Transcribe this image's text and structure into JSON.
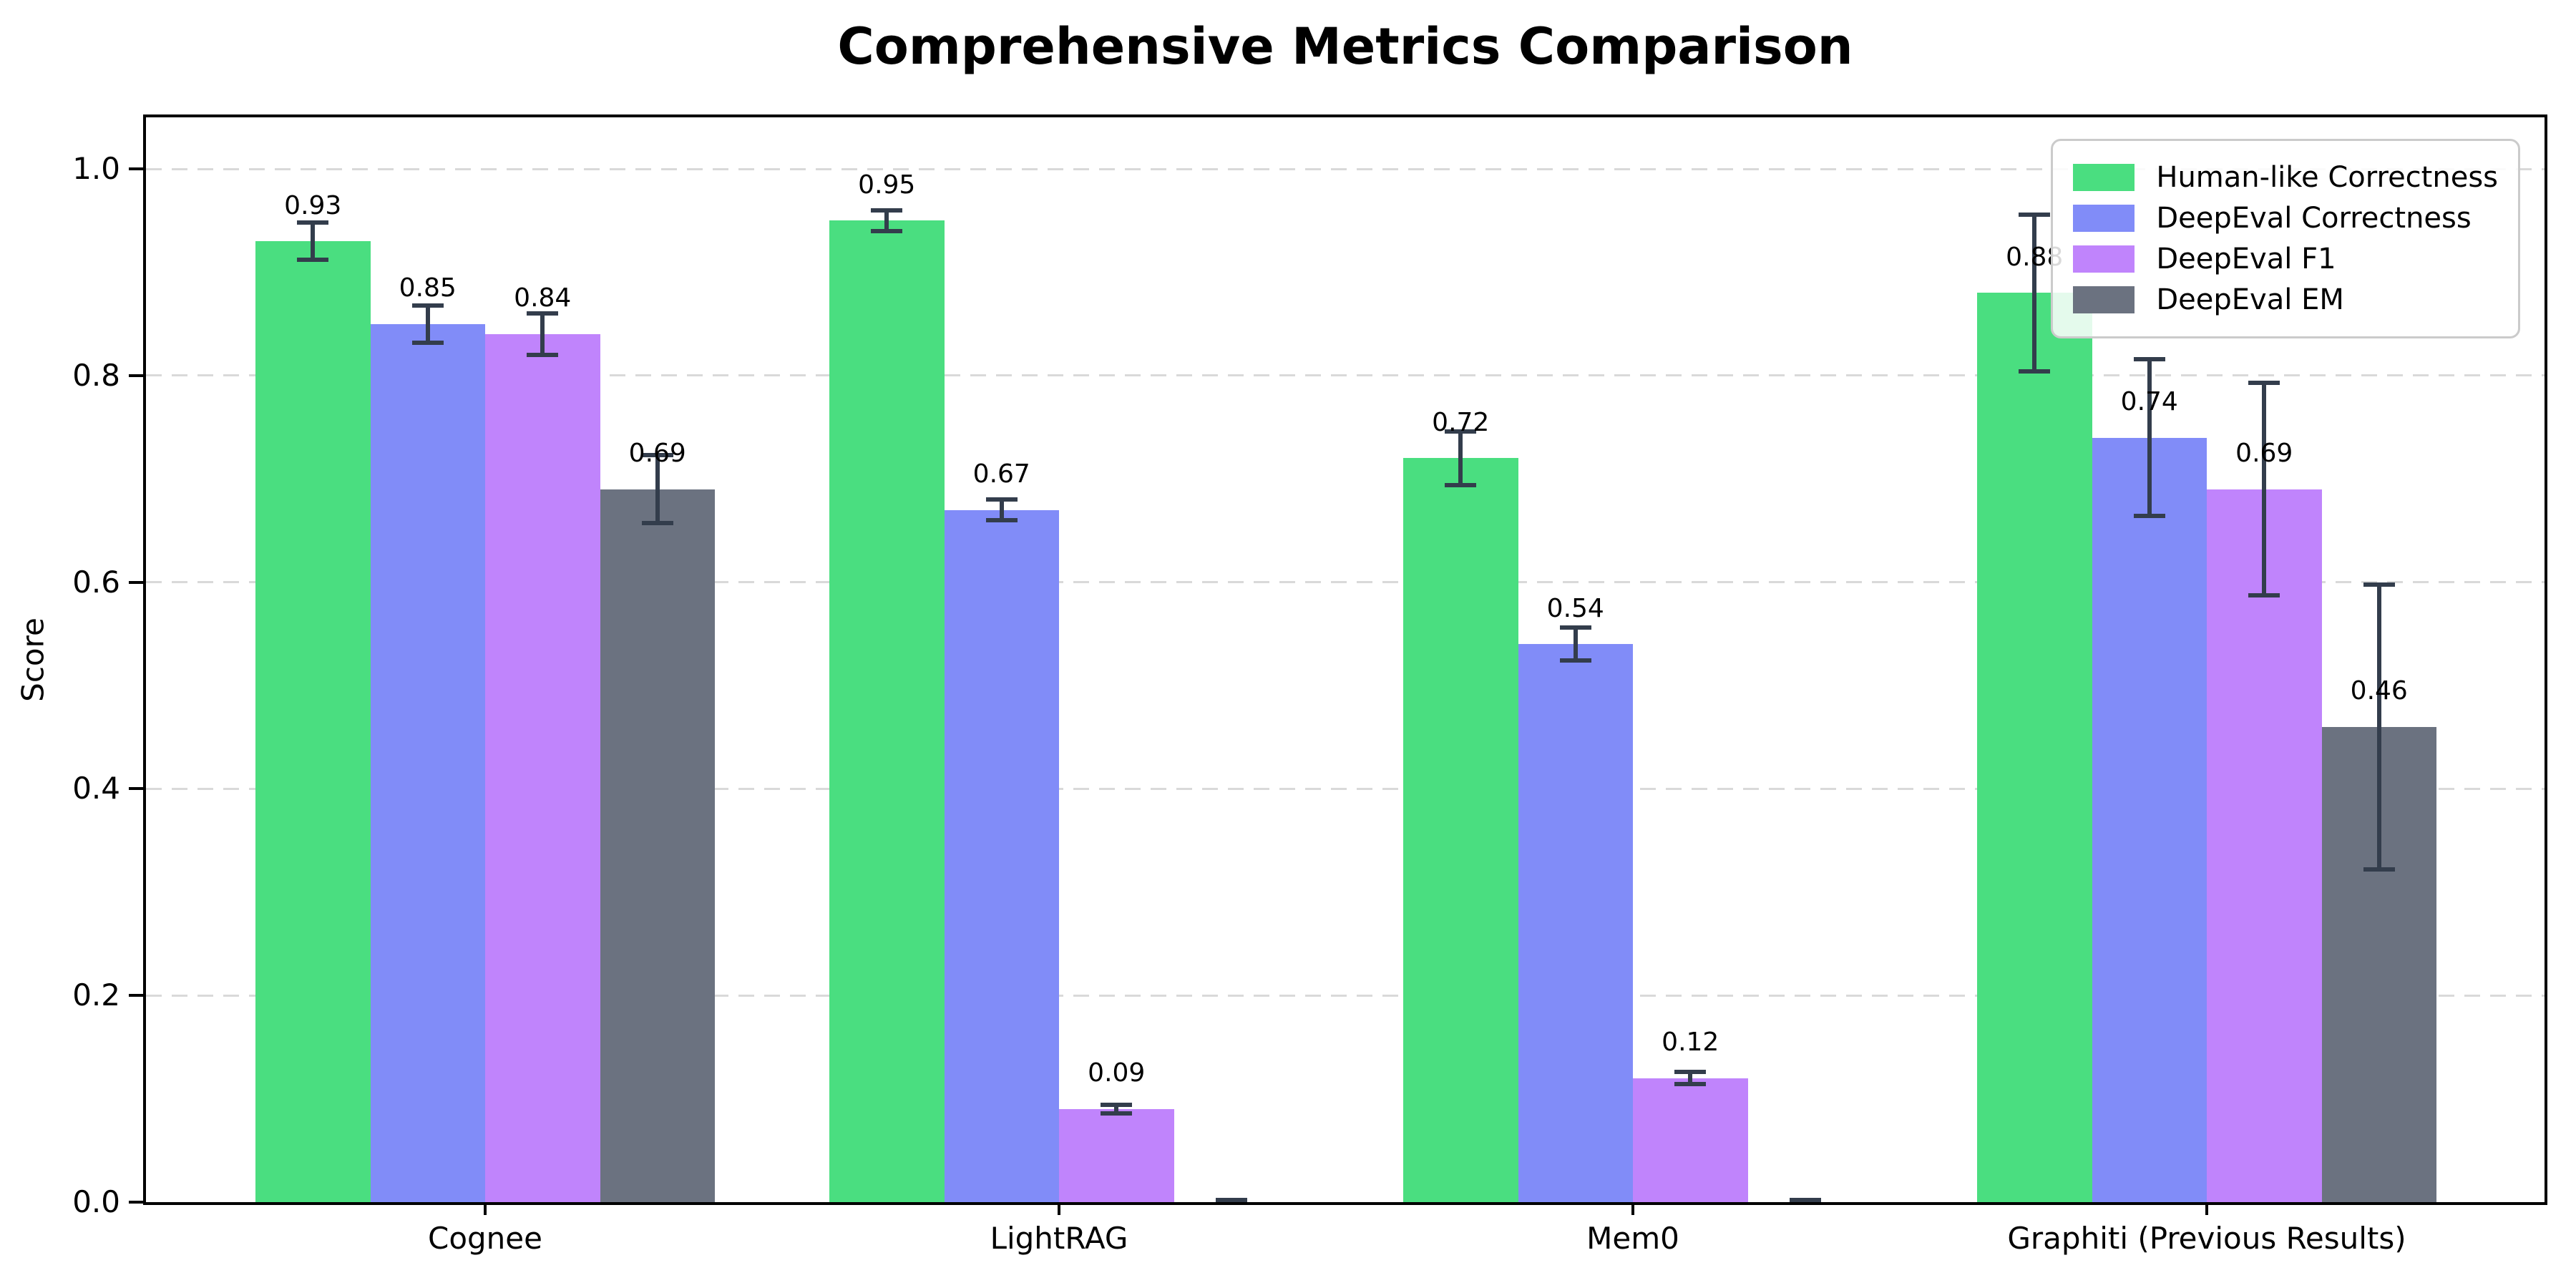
{
  "chart_data": {
    "type": "bar",
    "title": "Comprehensive Metrics Comparison",
    "ylabel": "Score",
    "xlabel": "",
    "categories": [
      "Cognee",
      "LightRAG",
      "Mem0",
      "Graphiti (Previous Results)"
    ],
    "series": [
      {
        "name": "Human-like Correctness",
        "color": "#4ade80",
        "values": [
          0.93,
          0.95,
          0.72,
          0.88
        ],
        "errors": [
          0.02,
          0.012,
          0.028,
          0.078
        ],
        "labels": [
          "0.93",
          "0.95",
          "0.72",
          "0.88"
        ]
      },
      {
        "name": "DeepEval Correctness",
        "color": "#818cf8",
        "values": [
          0.85,
          0.67,
          0.54,
          0.74
        ],
        "errors": [
          0.02,
          0.012,
          0.018,
          0.078
        ],
        "labels": [
          "0.85",
          "0.67",
          "0.54",
          "0.74"
        ]
      },
      {
        "name": "DeepEval F1",
        "color": "#c084fc",
        "values": [
          0.84,
          0.09,
          0.12,
          0.69
        ],
        "errors": [
          0.022,
          0.006,
          0.008,
          0.105
        ],
        "labels": [
          "0.84",
          "0.09",
          "0.12",
          "0.69"
        ]
      },
      {
        "name": "DeepEval EM",
        "color": "#6b7280",
        "values": [
          0.69,
          0.0,
          0.0,
          0.46
        ],
        "errors": [
          0.035,
          0.004,
          0.004,
          0.14
        ],
        "labels": [
          "0.69",
          null,
          null,
          "0.46"
        ]
      }
    ],
    "ylim": [
      0,
      1.05
    ],
    "yticks": [
      "0.0",
      "0.2",
      "0.4",
      "0.6",
      "0.8",
      "1.0"
    ],
    "grid": "horizontal-dashed",
    "legend_position": "upper-right",
    "colors": {
      "errorbar": "#333d4c",
      "gridline": "#d9d9d9",
      "axis": "#000000",
      "legend_border": "#cbcbcb"
    }
  }
}
